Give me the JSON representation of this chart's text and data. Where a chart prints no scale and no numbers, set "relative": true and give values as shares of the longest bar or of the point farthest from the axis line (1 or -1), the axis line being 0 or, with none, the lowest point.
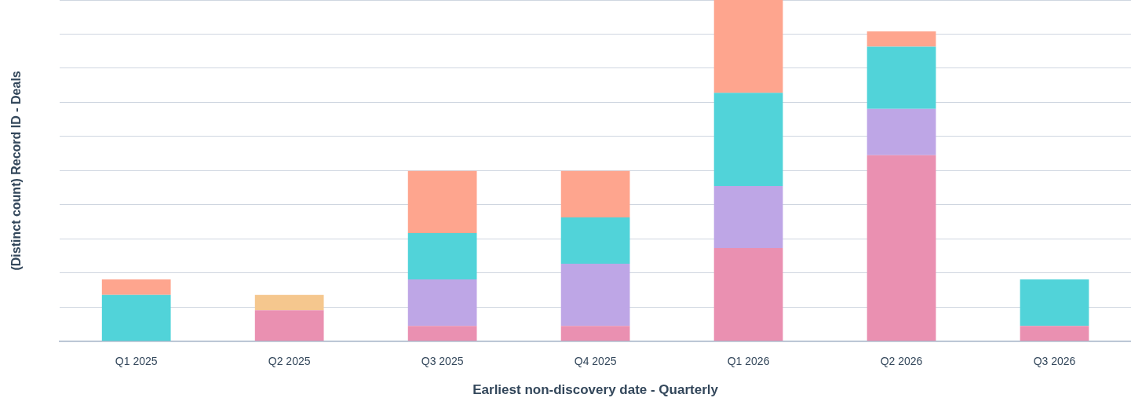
{
  "chart_data": {
    "type": "bar",
    "stacked": true,
    "relative": true,
    "grid": "y",
    "legend": false,
    "xlabel": "Earliest non-discovery date - Quarterly",
    "ylabel": "(Distinct count) Record ID - Deals",
    "categories": [
      "Q1 2025",
      "Q2 2025",
      "Q3 2025",
      "Q4 2025",
      "Q1 2026",
      "Q2 2026",
      "Q3 2026"
    ],
    "series": [
      {
        "color": "#ea90b1",
        "values": [
          null,
          0.091,
          0.045,
          0.045,
          0.273,
          0.545,
          0.045
        ]
      },
      {
        "color": "#f5c78e",
        "values": [
          null,
          0.045,
          null,
          null,
          null,
          null,
          null
        ]
      },
      {
        "color": "#bea6e6",
        "values": [
          null,
          null,
          0.136,
          0.182,
          0.182,
          0.136,
          null
        ]
      },
      {
        "color": "#51d3d9",
        "values": [
          0.136,
          null,
          0.136,
          0.136,
          0.273,
          0.182,
          0.136
        ]
      },
      {
        "color": "#fea58e",
        "values": [
          0.045,
          null,
          0.182,
          0.136,
          0.272,
          0.045,
          null
        ]
      }
    ]
  }
}
